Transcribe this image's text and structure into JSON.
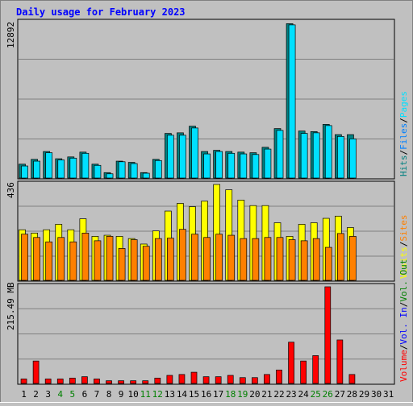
{
  "title": "Daily usage for February 2023",
  "colors": {
    "background": "#c0c0c0",
    "title": "#0000ff",
    "hits": "#008080",
    "files": "#0080ff",
    "pages": "#00e0ff",
    "visits": "#ffff00",
    "sites": "#ff8000",
    "volume": "#ff0000",
    "vol_in": "#0000ff",
    "vol_out": "#008000",
    "weekend_day": "#008000",
    "weekday": "#000000"
  },
  "chart_data": [
    {
      "type": "bar",
      "panel": "top",
      "ymax_label": "12892",
      "ymax": 12892,
      "legend": [
        {
          "label": "Hits",
          "color": "#008080"
        },
        {
          "label": "Files",
          "color": "#0080ff"
        },
        {
          "label": "Pages",
          "color": "#00e0ff"
        }
      ],
      "categories": [
        "1",
        "2",
        "3",
        "4",
        "5",
        "6",
        "7",
        "8",
        "9",
        "10",
        "11",
        "12",
        "13",
        "14",
        "15",
        "16",
        "17",
        "18",
        "19",
        "20",
        "21",
        "22",
        "23",
        "24",
        "25",
        "26",
        "27",
        "28"
      ],
      "series": [
        {
          "name": "Hits",
          "values": [
            1150,
            1550,
            2200,
            1600,
            1750,
            2150,
            1150,
            450,
            1400,
            1300,
            450,
            1550,
            3700,
            3750,
            4300,
            2200,
            2300,
            2200,
            2150,
            2100,
            2550,
            4100,
            12800,
            3900,
            3850,
            4450,
            3600,
            3600
          ]
        },
        {
          "name": "Files",
          "values": [
            1000,
            1400,
            2100,
            1500,
            1650,
            2050,
            1050,
            350,
            1350,
            1200,
            400,
            1450,
            3550,
            3550,
            4150,
            2000,
            2200,
            2050,
            2000,
            1950,
            2400,
            3950,
            12700,
            3700,
            3750,
            4350,
            3450,
            3250
          ]
        }
      ]
    },
    {
      "type": "bar",
      "panel": "middle",
      "ymax_label": "436",
      "ymax": 436,
      "legend": [
        {
          "label": "Visits",
          "color": "#ffff00"
        },
        {
          "label": "Sites",
          "color": "#ff8000"
        }
      ],
      "categories": [
        "1",
        "2",
        "3",
        "4",
        "5",
        "6",
        "7",
        "8",
        "9",
        "10",
        "11",
        "12",
        "13",
        "14",
        "15",
        "16",
        "17",
        "18",
        "19",
        "20",
        "21",
        "22",
        "23",
        "24",
        "25",
        "26",
        "27",
        "28"
      ],
      "series": [
        {
          "name": "Visits",
          "values": [
            230,
            215,
            230,
            255,
            230,
            280,
            200,
            205,
            200,
            190,
            165,
            225,
            315,
            350,
            335,
            360,
            436,
            412,
            365,
            340,
            340,
            262,
            200,
            255,
            262,
            282,
            292,
            240
          ]
        },
        {
          "name": "Sites",
          "values": [
            210,
            195,
            175,
            195,
            175,
            215,
            180,
            200,
            145,
            185,
            155,
            190,
            192,
            232,
            210,
            195,
            210,
            205,
            190,
            190,
            195,
            195,
            185,
            180,
            190,
            150,
            213,
            200
          ]
        }
      ]
    },
    {
      "type": "bar",
      "panel": "bottom",
      "ymax_label": "215.49 MB",
      "ymax": 215.49,
      "legend": [
        {
          "label": "Volume",
          "color": "#ff0000"
        },
        {
          "label": "Vol. In",
          "color": "#0000ff"
        },
        {
          "label": "Vol. Out",
          "color": "#008000"
        }
      ],
      "categories": [
        "1",
        "2",
        "3",
        "4",
        "5",
        "6",
        "7",
        "8",
        "9",
        "10",
        "11",
        "12",
        "13",
        "14",
        "15",
        "16",
        "17",
        "18",
        "19",
        "20",
        "21",
        "22",
        "23",
        "24",
        "25",
        "26",
        "27",
        "28",
        "29",
        "30",
        "31"
      ],
      "weekend_days": [
        "4",
        "5",
        "11",
        "12",
        "18",
        "19",
        "25",
        "26"
      ],
      "series": [
        {
          "name": "Volume",
          "values": [
            10,
            50,
            10,
            10,
            12,
            15,
            10,
            6,
            6,
            6,
            6,
            12,
            18,
            20,
            25,
            15,
            15,
            18,
            13,
            13,
            20,
            30,
            92,
            50,
            62,
            215.49,
            97,
            20,
            0,
            0,
            0
          ]
        }
      ]
    }
  ]
}
